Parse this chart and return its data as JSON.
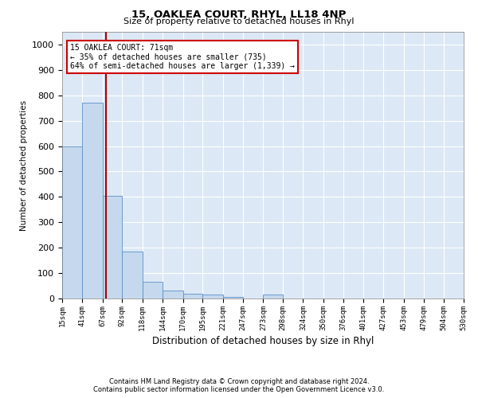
{
  "title": "15, OAKLEA COURT, RHYL, LL18 4NP",
  "subtitle": "Size of property relative to detached houses in Rhyl",
  "xlabel": "Distribution of detached houses by size in Rhyl",
  "ylabel": "Number of detached properties",
  "footnote1": "Contains HM Land Registry data © Crown copyright and database right 2024.",
  "footnote2": "Contains public sector information licensed under the Open Government Licence v3.0.",
  "annotation_title": "15 OAKLEA COURT: 71sqm",
  "annotation_line1": "← 35% of detached houses are smaller (735)",
  "annotation_line2": "64% of semi-detached houses are larger (1,339) →",
  "property_size": 71,
  "bin_edges": [
    15,
    41,
    67,
    92,
    118,
    144,
    170,
    195,
    221,
    247,
    273,
    298,
    324,
    350,
    376,
    401,
    427,
    453,
    479,
    504,
    530
  ],
  "bar_heights": [
    600,
    770,
    405,
    185,
    65,
    30,
    20,
    15,
    5,
    0,
    15,
    0,
    0,
    0,
    0,
    0,
    0,
    0,
    0,
    0
  ],
  "bar_color": "#c5d8ed",
  "bar_edge_color": "#5b8fc9",
  "vline_color": "#aa0000",
  "annotation_box_color": "#ffffff",
  "annotation_box_edge": "#cc0000",
  "background_color": "#dce8f5",
  "fig_background": "#ffffff",
  "ylim": [
    0,
    1050
  ],
  "yticks": [
    0,
    100,
    200,
    300,
    400,
    500,
    600,
    700,
    800,
    900,
    1000
  ]
}
